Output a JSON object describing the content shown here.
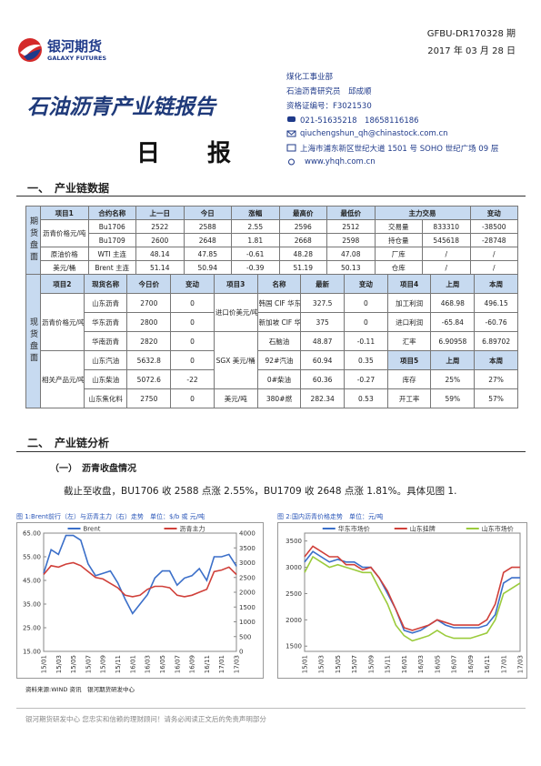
{
  "header": {
    "logo_cn": "银河期货",
    "logo_en": "GALAXY FUTURES",
    "code": "GFBU-DR170328 期",
    "date": "2017 年 03 月 28 日",
    "title": "石油沥青产业链报告",
    "subtitle": "日　　报"
  },
  "contact": {
    "dept": "煤化工事业部",
    "analyst": "石油沥青研究员　邱成顺",
    "license": "资格证编号：F3021530",
    "phone": "021-51635218　18658116186",
    "email": "qiuchengshun_qh@chinastock.com.cn",
    "address": "上海市浦东新区世纪大道 1501 号 SOHO 世纪广场 09 层",
    "web": "www.yhqh.com.cn"
  },
  "section1": "一、　产业链数据",
  "table1": {
    "side": "期货盘面",
    "header": [
      "项目1",
      "合约名称",
      "上一日",
      "今日",
      "涨幅",
      "最高价",
      "最低价",
      "主力交易",
      "变动"
    ],
    "rows": [
      [
        "沥青价格元/吨",
        "Bu1706",
        "2522",
        "2588",
        "2.55",
        "2596",
        "2512",
        "交易量",
        "833310",
        "-38500"
      ],
      [
        "Bu1709",
        "2600",
        "2648",
        "1.81",
        "2668",
        "2598",
        "持仓量",
        "545618",
        "-28748"
      ],
      [
        "原油价格",
        "WTI 主连",
        "48.14",
        "47.85",
        "-0.61",
        "48.28",
        "47.08",
        "厂库",
        "/",
        "/"
      ],
      [
        "美元/桶",
        "Brent 主连",
        "51.14",
        "50.94",
        "-0.39",
        "51.19",
        "50.13",
        "仓库",
        "/",
        "/"
      ]
    ]
  },
  "table2": {
    "side": "现货盘面",
    "header": [
      "项目2",
      "现货名称",
      "今日价",
      "变动",
      "项目3",
      "名称",
      "最新",
      "变动",
      "项目4",
      "上周",
      "本周"
    ],
    "rows": [
      [
        "沥青价格元/吨",
        "山东沥青",
        "2700",
        "0",
        "进口价美元/吨",
        "韩国 CIF 华东",
        "327.5",
        "0",
        "加工利润",
        "468.98",
        "496.15"
      ],
      [
        "华东沥青",
        "2800",
        "0",
        "新加坡 CIF 华南",
        "375",
        "0",
        "进口利润",
        "-65.84",
        "-60.76"
      ],
      [
        "华南沥青",
        "2820",
        "0",
        "SGX 美元/桶",
        "石脑油",
        "48.87",
        "-0.11",
        "汇率",
        "6.90958",
        "6.89702"
      ],
      [
        "相关产品元/吨",
        "山东汽油",
        "5632.8",
        "0",
        "92#汽油",
        "60.94",
        "0.35",
        "项目5",
        "上周",
        "本周"
      ],
      [
        "山东柴油",
        "5072.6",
        "-22",
        "0#柴油",
        "60.36",
        "-0.27",
        "库存",
        "25%",
        "27%"
      ],
      [
        "山东焦化料",
        "2750",
        "0",
        "美元/吨",
        "380#燃",
        "282.34",
        "0.53",
        "开工率",
        "59%",
        "57%"
      ]
    ]
  },
  "section2": "二、　产业链分析",
  "subsection": "（一）　沥青收盘情况",
  "paragraph": "截止至收盘，BU1706 收 2588 点涨 2.55%，BU1709 收 2648 点涨 1.81%。具体见图 1.",
  "chart_data": [
    {
      "type": "line",
      "title": "图 1:Brent前行（左）与沥青主力（右）走势　单位：$/b 或 元/吨",
      "categories": [
        "15/01",
        null,
        "15/03",
        null,
        "15/05",
        null,
        "15/07",
        null,
        "15/09",
        null,
        "15/11",
        null,
        "16/01",
        null,
        "16/03",
        null,
        "16/05",
        null,
        "16/07",
        null,
        "16/09",
        null,
        "16/11",
        null,
        "17/01",
        null,
        "17/03"
      ],
      "series": [
        {
          "name": "Brent",
          "color": "#3b6fc9",
          "values": [
            48,
            58,
            56,
            64,
            64,
            62,
            52,
            47,
            48,
            49,
            44,
            37,
            31,
            35,
            39,
            46,
            49,
            49,
            43,
            46,
            47,
            50,
            45,
            55,
            55,
            56,
            51
          ]
        },
        {
          "name": "沥青主力",
          "color": "#d0403a",
          "axis": "y2",
          "values": [
            2600,
            2900,
            2850,
            2950,
            3000,
            2900,
            2700,
            2500,
            2450,
            2300,
            2150,
            1900,
            1850,
            1900,
            2100,
            2200,
            2200,
            2150,
            1900,
            1850,
            1900,
            2000,
            2100,
            2700,
            2750,
            2850,
            2600
          ]
        }
      ],
      "ylim": [
        15,
        65
      ],
      "yticks": [
        {
          "value": 15,
          "label": "15.00"
        },
        {
          "value": 25,
          "label": "25.00"
        },
        {
          "value": 35,
          "label": "35.00"
        },
        {
          "value": 45,
          "label": "45.00"
        },
        {
          "value": 55,
          "label": "55.00"
        },
        {
          "value": 65,
          "label": "65.00"
        }
      ],
      "y2lim": [
        0,
        4000
      ],
      "y2ticks": [
        0,
        500,
        1000,
        1500,
        2000,
        2500,
        3000,
        3500,
        4000
      ]
    },
    {
      "type": "line",
      "title": "图 2:国内沥青价格走势　单位：元/吨",
      "categories": [
        "15/01",
        null,
        "15/03",
        null,
        "15/05",
        null,
        "15/07",
        null,
        "15/09",
        null,
        "15/11",
        null,
        "16/01",
        null,
        "16/03",
        null,
        "16/05",
        null,
        "16/07",
        null,
        "16/09",
        null,
        "16/11",
        null,
        "17/01",
        null,
        "17/03"
      ],
      "series": [
        {
          "name": "华东市场价",
          "color": "#3b6fc9",
          "values": [
            3100,
            3300,
            3200,
            3100,
            3150,
            3100,
            3100,
            3000,
            3000,
            2800,
            2500,
            2200,
            1800,
            1750,
            1800,
            1900,
            2000,
            1900,
            1850,
            1850,
            1850,
            1850,
            1900,
            2100,
            2700,
            2800,
            2800
          ]
        },
        {
          "name": "山东挂牌",
          "color": "#d0403a",
          "values": [
            3200,
            3400,
            3300,
            3200,
            3200,
            3050,
            3050,
            2950,
            3000,
            2800,
            2550,
            2200,
            1850,
            1800,
            1850,
            1900,
            2000,
            1950,
            1900,
            1900,
            1900,
            1900,
            2000,
            2300,
            2900,
            3000,
            3000
          ]
        },
        {
          "name": "山东市场价",
          "color": "#9bcb3c",
          "values": [
            2900,
            3200,
            3100,
            3000,
            3050,
            3000,
            2950,
            2900,
            2900,
            2600,
            2300,
            1900,
            1700,
            1600,
            1650,
            1700,
            1800,
            1700,
            1650,
            1650,
            1650,
            1700,
            1750,
            2000,
            2500,
            2600,
            2700
          ]
        }
      ],
      "ylim": [
        1400,
        3650
      ],
      "yticks": [
        1500,
        2000,
        2500,
        3000,
        3500
      ]
    }
  ],
  "source": "资料来源:WIND 资讯　银河期货研发中心",
  "footer": "银河期货研发中心 您忠实和信赖的理财顾问！请务必阅读正文后的免责声明部分"
}
